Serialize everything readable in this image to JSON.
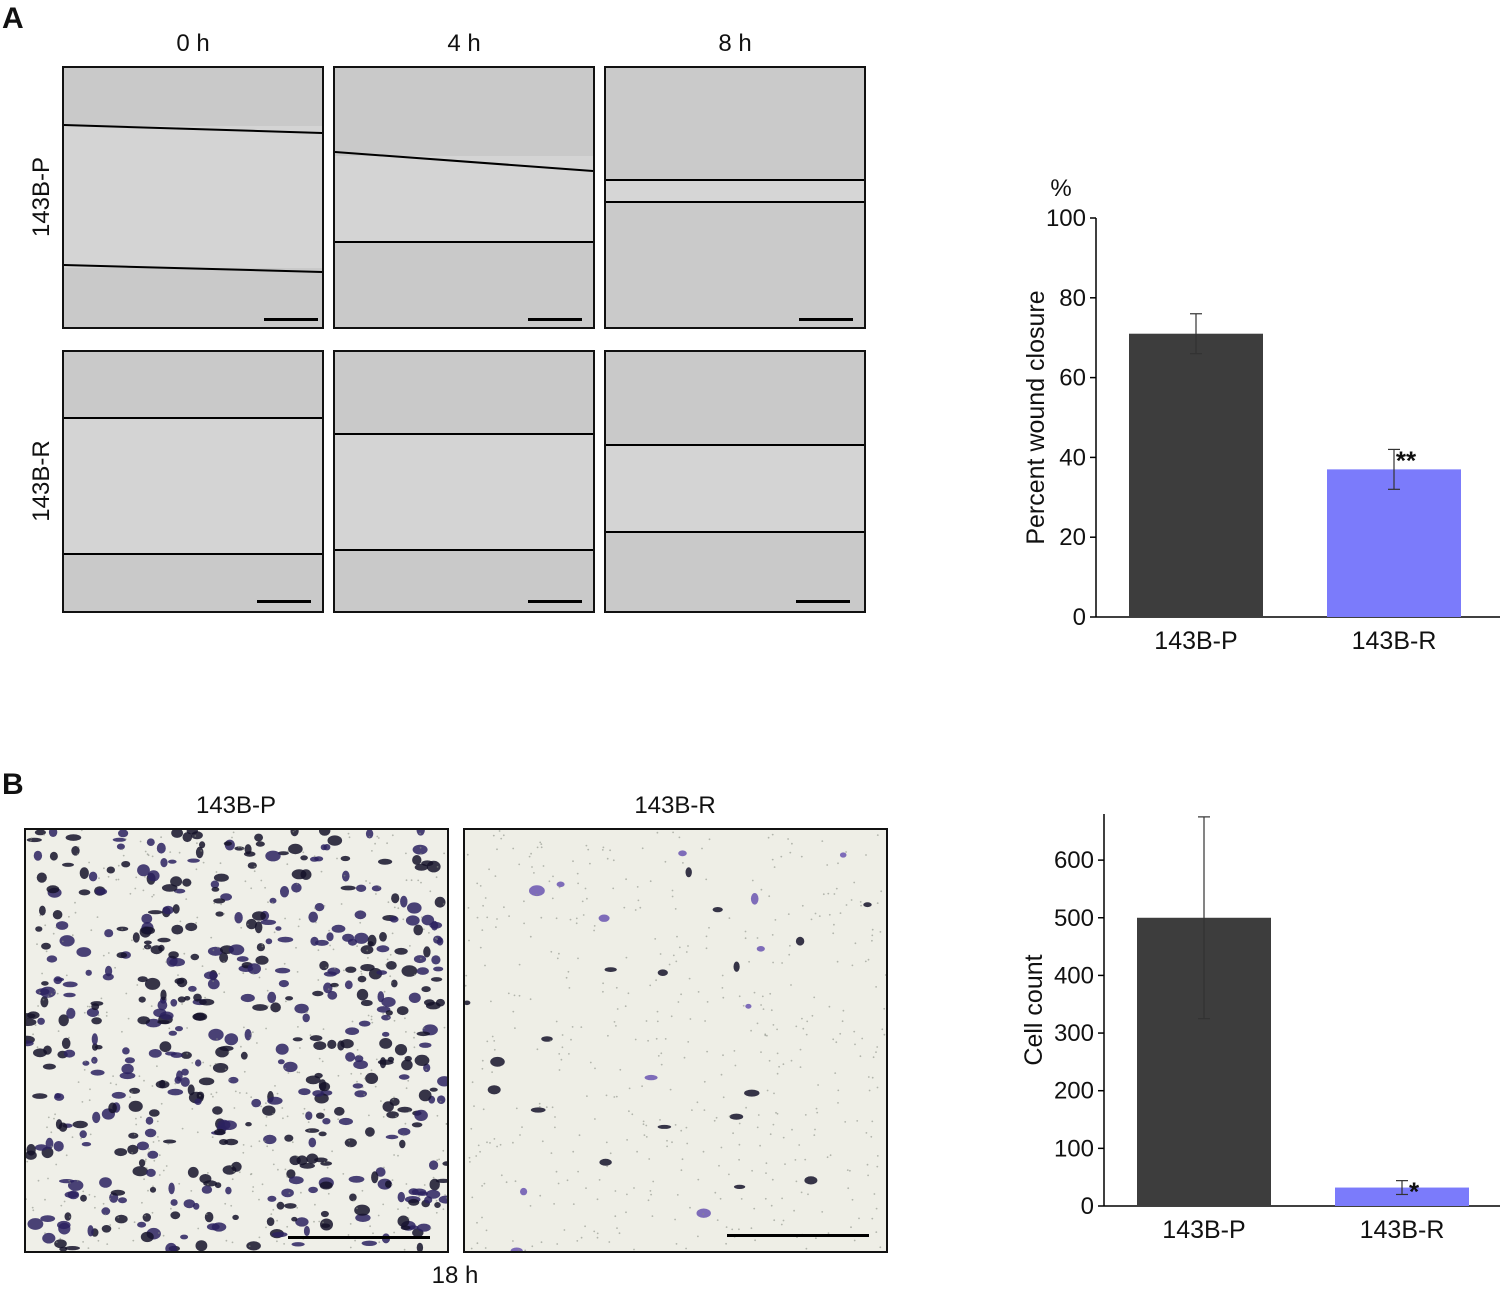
{
  "panel_a": {
    "letter": "A",
    "time_labels": [
      "0 h",
      "4 h",
      "8 h"
    ],
    "row_labels": [
      "143B-P",
      "143B-R"
    ]
  },
  "panel_b": {
    "letter": "B",
    "image_labels": [
      "143B-P",
      "143B-R"
    ],
    "time_label": "18 h"
  },
  "colors": {
    "dark_bar": "#3d3d3d",
    "blue_bar": "#7b7bfb",
    "micro_bg": "#d6d6d6",
    "stain": "#2b2260"
  },
  "chart_data": [
    {
      "type": "bar",
      "unit_label": "%",
      "ylabel": "Percent wound closure",
      "categories": [
        "143B-P",
        "143B-R"
      ],
      "values": [
        71,
        37
      ],
      "error": [
        5,
        5
      ],
      "annotations": [
        "",
        "**"
      ],
      "ylim": [
        0,
        100
      ],
      "yticks": [
        0,
        20,
        40,
        60,
        80,
        100
      ]
    },
    {
      "type": "bar",
      "ylabel": "Cell count",
      "categories": [
        "143B-P",
        "143B-R"
      ],
      "values": [
        500,
        32
      ],
      "error": [
        175,
        12
      ],
      "annotations": [
        "",
        "*"
      ],
      "ylim": [
        0,
        680
      ],
      "yticks": [
        0,
        100,
        200,
        300,
        400,
        500,
        600
      ]
    }
  ]
}
